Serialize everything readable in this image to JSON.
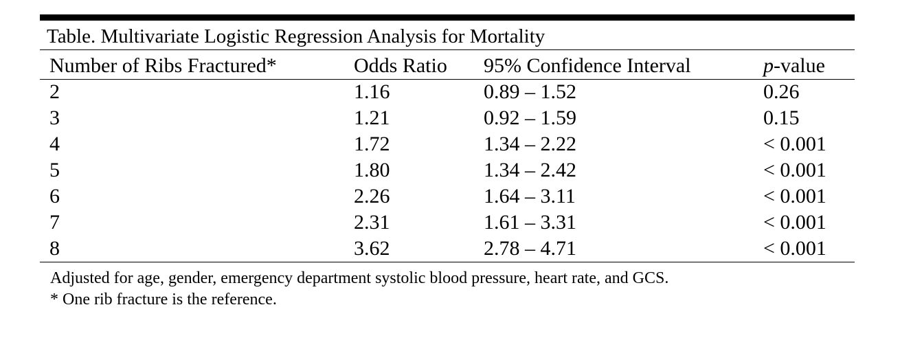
{
  "table": {
    "title": "Table. Multivariate Logistic Regression Analysis for Mortality",
    "headers": {
      "ribs": "Number of Ribs Fractured*",
      "odds": "Odds Ratio",
      "ci": "95% Confidence Interval",
      "p_italic": "p",
      "p_rest": "-value"
    },
    "rows": [
      {
        "ribs": "2",
        "odds": "1.16",
        "ci": "0.89 – 1.52",
        "p": "0.26"
      },
      {
        "ribs": "3",
        "odds": "1.21",
        "ci": "0.92 – 1.59",
        "p": "0.15"
      },
      {
        "ribs": "4",
        "odds": "1.72",
        "ci": "1.34 – 2.22",
        "p": "< 0.001"
      },
      {
        "ribs": "5",
        "odds": "1.80",
        "ci": "1.34 – 2.42",
        "p": "< 0.001"
      },
      {
        "ribs": "6",
        "odds": "2.26",
        "ci": "1.64 – 3.11",
        "p": "< 0.001"
      },
      {
        "ribs": "7",
        "odds": "2.31",
        "ci": "1.61 – 3.31",
        "p": "< 0.001"
      },
      {
        "ribs": "8",
        "odds": "3.62",
        "ci": "2.78 – 4.71",
        "p": "< 0.001"
      }
    ],
    "footnotes": {
      "adjusted": "Adjusted for age, gender, emergency department systolic blood pressure, heart rate, and GCS.",
      "reference": "* One rib fracture is the reference."
    }
  }
}
